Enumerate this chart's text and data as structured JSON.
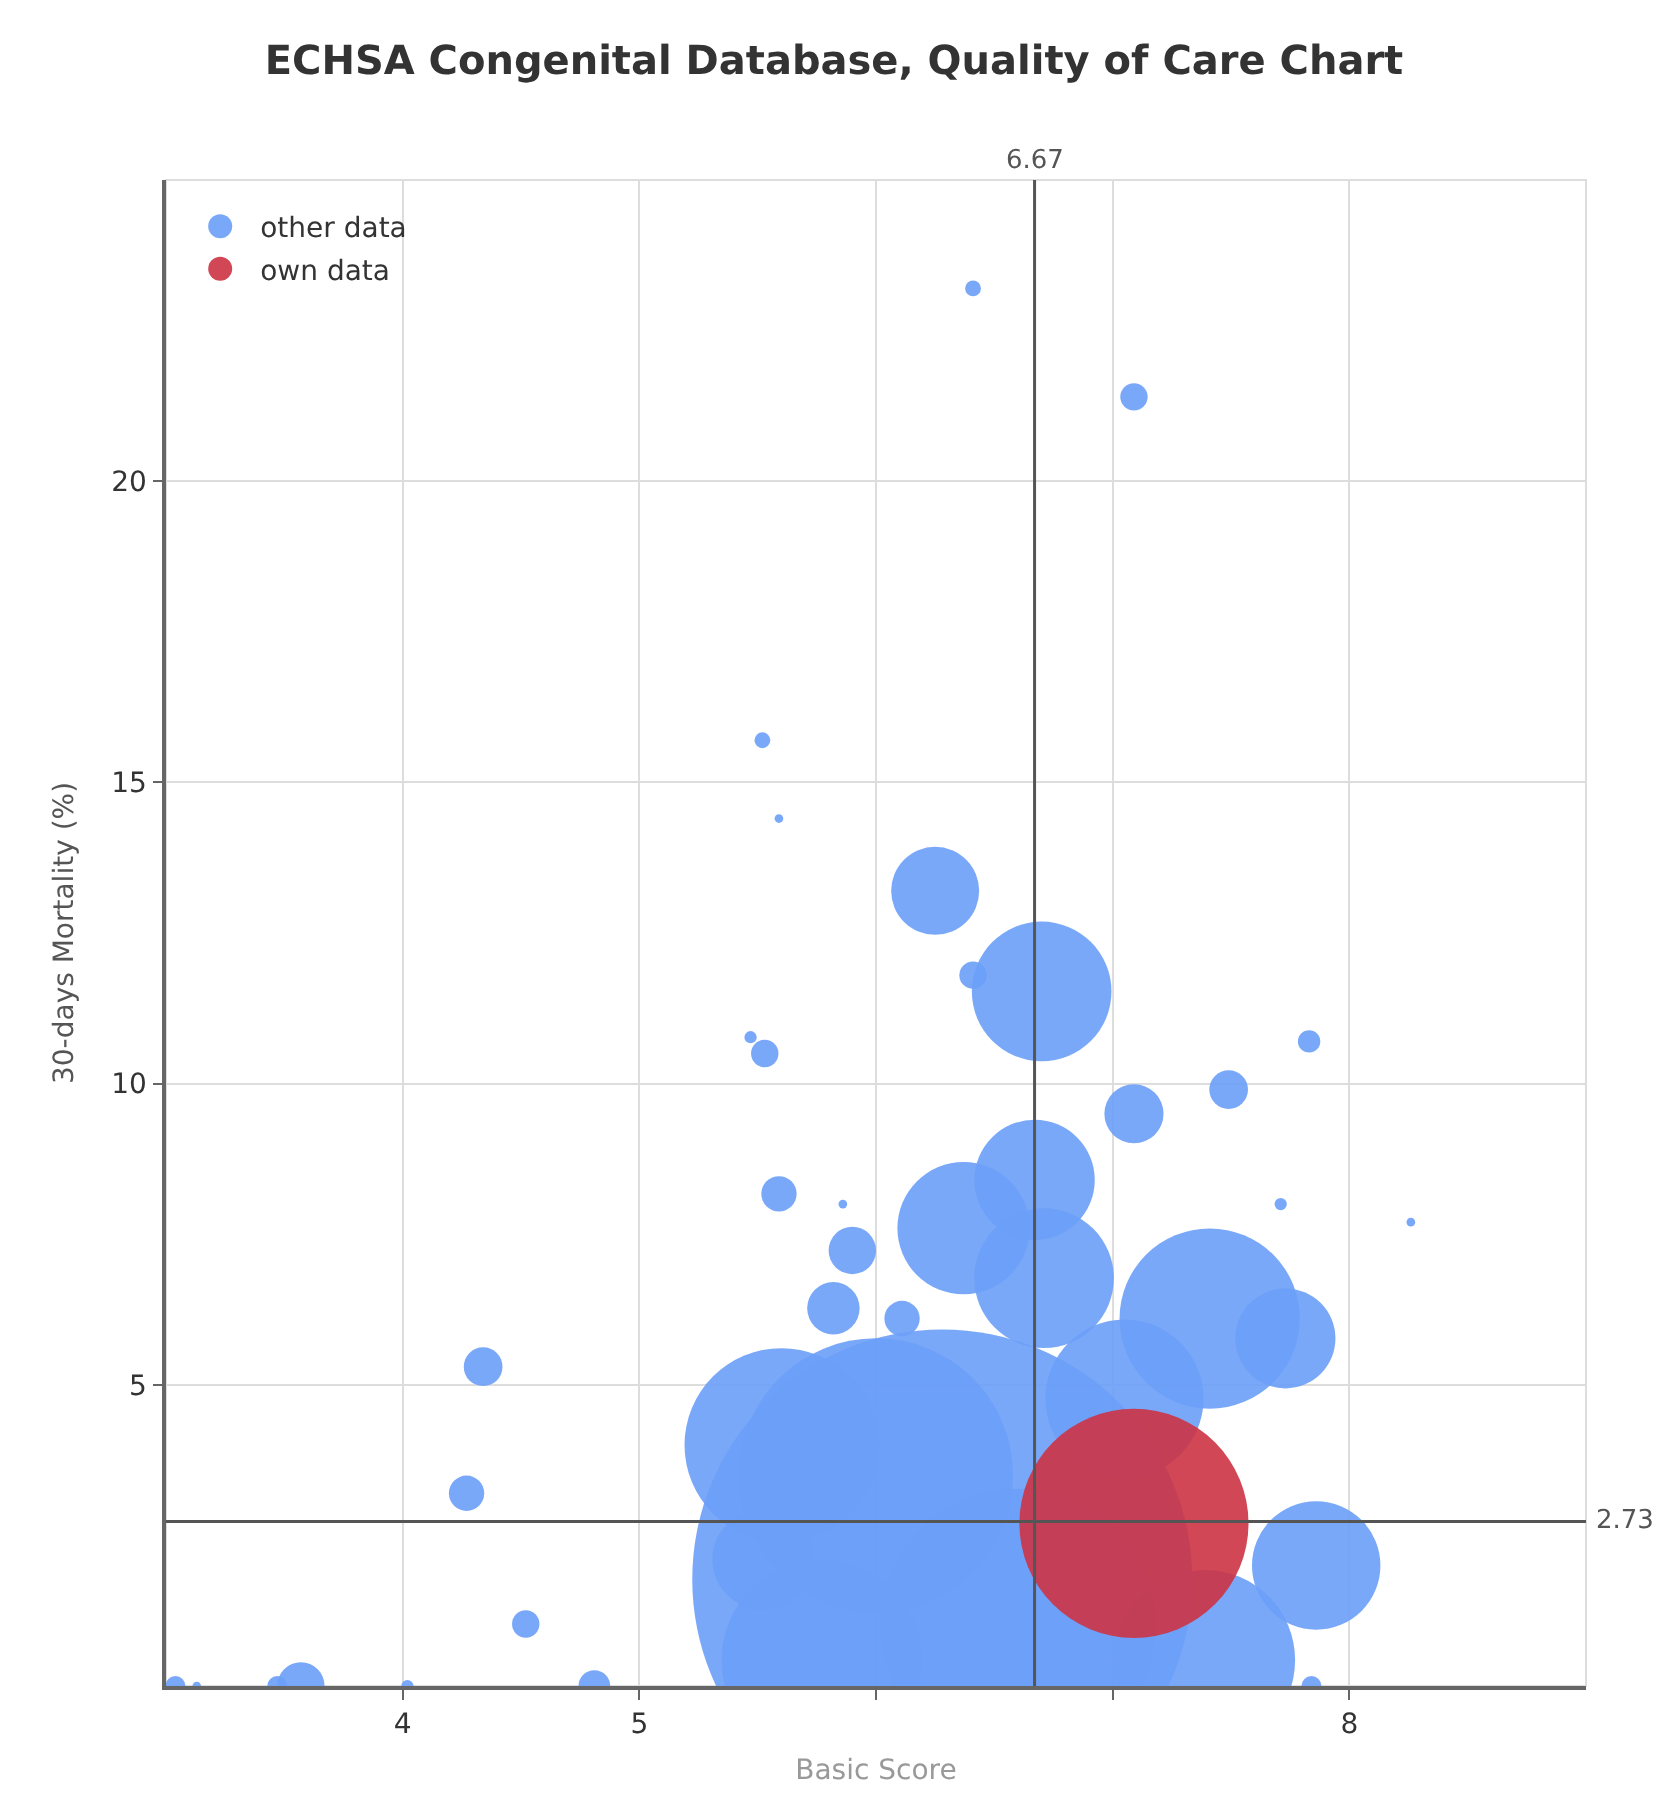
{
  "chart_data": {
    "type": "bubble",
    "title": "ECHSA Congenital Database, Quality of Care Chart",
    "xlabel": "Basic Score",
    "ylabel": "30-days Mortality (%)",
    "xlim": [
      3,
      9
    ],
    "xticks": [
      4,
      5,
      {
        "value": 6,
        "label": null
      },
      {
        "value": 7,
        "label": null
      },
      8
    ],
    "ylim": [
      0,
      25
    ],
    "yticks": [
      5,
      10,
      15,
      20
    ],
    "grid": true,
    "legend": "top left",
    "ref_lines": [
      {
        "axis": "x",
        "value": 6.67,
        "label": "6.67",
        "color": "#555555"
      },
      {
        "axis": "y",
        "value": 2.73,
        "label": "2.73",
        "color": "#555555"
      }
    ],
    "series": [
      {
        "name": "other data",
        "color": "#6b9ff7",
        "x": [
          6.28,
          6.7,
          6.25,
          6.41,
          6.41,
          7.09,
          5.52,
          5.59,
          5.53,
          5.47,
          7.09,
          7.49,
          7.83,
          8.26,
          7.71,
          5.59,
          5.86,
          5.9,
          6.37,
          6.67,
          7.41,
          7.73,
          7.86,
          7.84,
          5.82,
          6.11,
          4.34,
          4.27,
          4.52,
          4.81,
          3.57,
          3.47,
          3.04,
          3.13,
          4.02,
          7.05,
          6.71,
          7.39,
          5.77,
          5.52,
          6.0,
          6.6,
          5.6
        ],
        "values": [
          1.77,
          11.53,
          13.2,
          11.8,
          23.2,
          21.4,
          15.7,
          14.4,
          10.5,
          10.77,
          9.5,
          9.9,
          10.7,
          7.7,
          8.0,
          8.17,
          8.0,
          7.23,
          7.6,
          8.4,
          6.1,
          5.77,
          2.0,
          0,
          6.27,
          6.1,
          5.3,
          3.2,
          1.03,
          0,
          0,
          0,
          0,
          0,
          0,
          4.77,
          6.77,
          0.43,
          0.43,
          2.1,
          3.5,
          1.0,
          4.0
        ],
        "sizes": [
          1,
          0.078,
          0.031,
          0.003,
          0.001,
          0.003,
          0.001,
          0.0003,
          0.003,
          0.0006,
          0.014,
          0.006,
          0.002,
          0.0003,
          0.0006,
          0.005,
          0.0003,
          0.009,
          0.07,
          0.058,
          0.13,
          0.04,
          0.066,
          0.0016,
          0.011,
          0.005,
          0.006,
          0.005,
          0.003,
          0.004,
          0.009,
          0.0016,
          0.0016,
          0.0003,
          0.0006,
          0.1,
          0.078,
          0.13,
          0.16,
          0.04,
          0.3,
          0.3,
          0.15
        ]
      },
      {
        "name": "own data",
        "color": "#cc3344",
        "x": [
          7.09
        ],
        "values": [
          2.7
        ],
        "sizes": [
          0.21
        ]
      }
    ]
  }
}
